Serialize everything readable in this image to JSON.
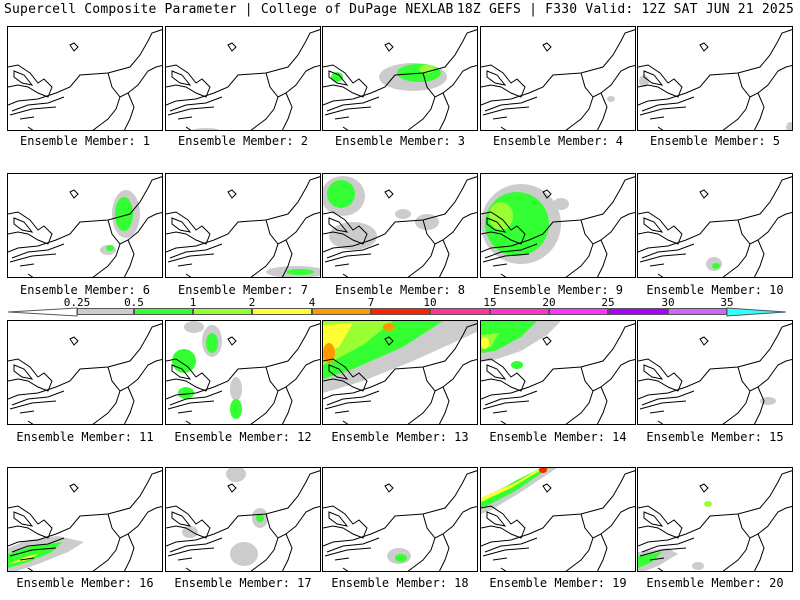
{
  "header": {
    "left": "Supercell Composite Parameter | College of DuPage NEXLAB",
    "right": "18Z GEFS | F330 Valid: 12Z SAT JUN 21 2025"
  },
  "label_prefix": "Ensemble Member: ",
  "colorbar": {
    "labels": [
      "0.25",
      "0.5",
      "1",
      "2",
      "4",
      "7",
      "10",
      "15",
      "20",
      "25",
      "30",
      "35"
    ],
    "colors": [
      "#cccccc",
      "#33ff33",
      "#99ff33",
      "#ffff33",
      "#ff9900",
      "#ff2200",
      "#ff3399",
      "#ff33cc",
      "#ff33ff",
      "#aa00ff",
      "#cc66ff",
      "#33ffff"
    ]
  },
  "colors": {
    "light": "#cccccc",
    "green": "#33ff33",
    "lime": "#99ff33",
    "yellow": "#ffff33",
    "orange": "#ff9900",
    "red": "#ff2200"
  },
  "members": [
    {
      "id": "1",
      "level": "none"
    },
    {
      "id": "2",
      "level": "trace"
    },
    {
      "id": "3",
      "level": "moderate"
    },
    {
      "id": "4",
      "level": "trace"
    },
    {
      "id": "5",
      "level": "trace"
    },
    {
      "id": "6",
      "level": "moderate"
    },
    {
      "id": "7",
      "level": "weak"
    },
    {
      "id": "8",
      "level": "moderate"
    },
    {
      "id": "9",
      "level": "moderate"
    },
    {
      "id": "10",
      "level": "weak"
    },
    {
      "id": "11",
      "level": "none"
    },
    {
      "id": "12",
      "level": "moderate"
    },
    {
      "id": "13",
      "level": "strong"
    },
    {
      "id": "14",
      "level": "moderate"
    },
    {
      "id": "15",
      "level": "trace"
    },
    {
      "id": "16",
      "level": "moderate"
    },
    {
      "id": "17",
      "level": "weak"
    },
    {
      "id": "18",
      "level": "weak"
    },
    {
      "id": "19",
      "level": "strong"
    },
    {
      "id": "20",
      "level": "moderate"
    }
  ]
}
